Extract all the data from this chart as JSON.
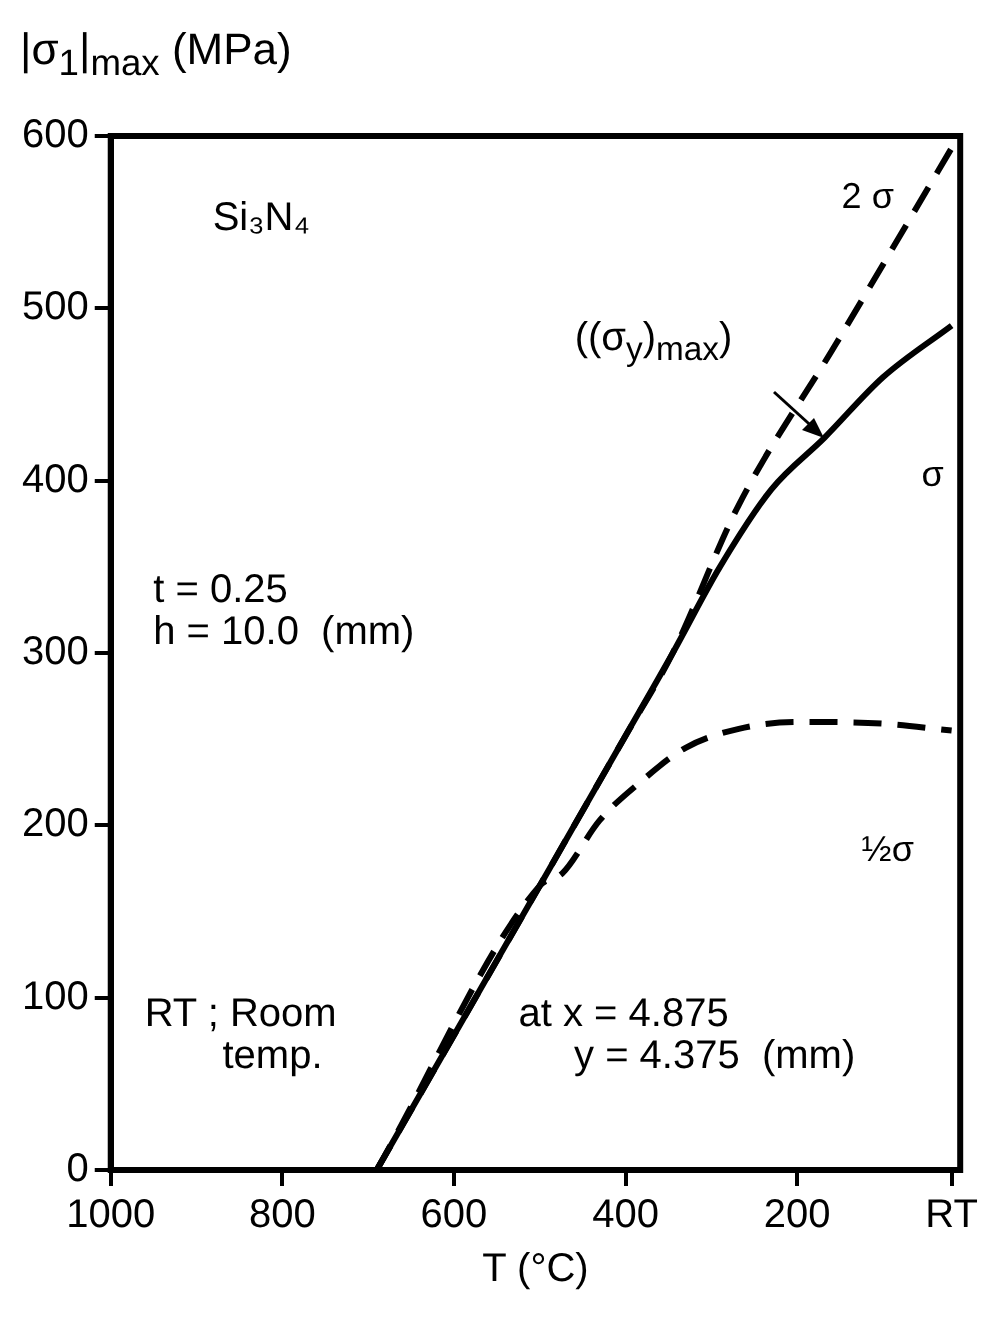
{
  "chart_data": {
    "type": "line",
    "ylabel": "|σ$_{1}$|$_{max}$ (MPa)",
    "xlabel": "T (°C)",
    "xlim": [
      1000,
      10
    ],
    "xticks": [
      1000,
      800,
      600,
      400,
      200,
      {
        "value": 20,
        "label": "RT"
      }
    ],
    "ylim": [
      0,
      600
    ],
    "yticks": [
      0,
      100,
      200,
      300,
      400,
      500,
      600
    ],
    "grid": false,
    "legend": false,
    "marker": "none",
    "series": [
      {
        "name": "2 σ",
        "color": "#000000",
        "line_style": "dashed",
        "x": [
          690,
          500,
          400,
          345,
          269,
          154,
          20
        ],
        "values": [
          0,
          165,
          252,
          300,
          385,
          480,
          593
        ]
      },
      {
        "name": "σ",
        "color": "#000000",
        "line_style": "solid",
        "x": [
          690,
          500,
          400,
          345,
          290,
          230,
          168,
          100,
          20
        ],
        "values": [
          0,
          165,
          252,
          300,
          350,
          395,
          425,
          460,
          490
        ]
      },
      {
        "name": "½σ",
        "color": "#000000",
        "line_style": "dashed",
        "x": [
          690,
          500,
          474,
          430,
          383,
          330,
          268,
          200,
          100,
          20
        ],
        "values": [
          0,
          165,
          172,
          203,
          225,
          245,
          256,
          260,
          259,
          255
        ]
      }
    ],
    "annotations": [
      "Si₃N₄",
      {
        "text": "((σ$_{y}$)$_{max}$)",
        "x": 168,
        "y": 425
      },
      "t = 0.25\nh = 10.0  (mm)",
      "RT ; Room\n       temp.",
      "at x = 4.875\n     y = 4.375  (mm)"
    ]
  }
}
